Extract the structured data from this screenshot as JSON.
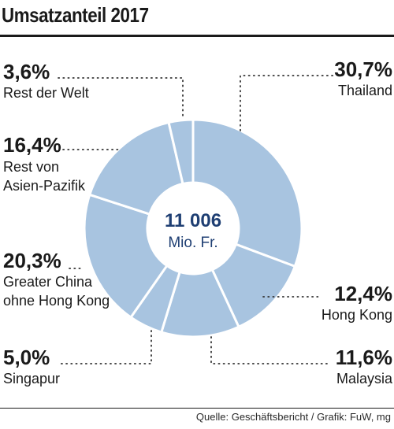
{
  "title": "Umsatzanteil 2017",
  "source": "Quelle: Geschäftsbericht / Grafik: FuW, mg",
  "colors": {
    "slice": "#a8c4e0",
    "slice_edge": "#ffffff",
    "accent": "#1f3f73",
    "text": "#1a1a1a"
  },
  "chart_data": {
    "type": "pie",
    "style": "donut",
    "title": "Umsatzanteil 2017",
    "center_value": "11 006",
    "center_unit": "Mio. Fr.",
    "slices": [
      {
        "label": "Thailand",
        "label_lines": [
          "Thailand"
        ],
        "value": 30.7,
        "display": "30,7%"
      },
      {
        "label": "Hong Kong",
        "label_lines": [
          "Hong Kong"
        ],
        "value": 12.4,
        "display": "12,4%"
      },
      {
        "label": "Malaysia",
        "label_lines": [
          "Malaysia"
        ],
        "value": 11.6,
        "display": "11,6%"
      },
      {
        "label": "Singapur",
        "label_lines": [
          "Singapur"
        ],
        "value": 5.0,
        "display": "5,0%"
      },
      {
        "label": "Greater China ohne Hong Kong",
        "label_lines": [
          "Greater China",
          "ohne Hong Kong"
        ],
        "value": 20.3,
        "display": "20,3%"
      },
      {
        "label": "Rest von Asien-Pazifik",
        "label_lines": [
          "Rest von",
          "Asien-Pazifik"
        ],
        "value": 16.4,
        "display": "16,4%"
      },
      {
        "label": "Rest der Welt",
        "label_lines": [
          "Rest der Welt"
        ],
        "value": 3.6,
        "display": "3,6%"
      }
    ]
  }
}
